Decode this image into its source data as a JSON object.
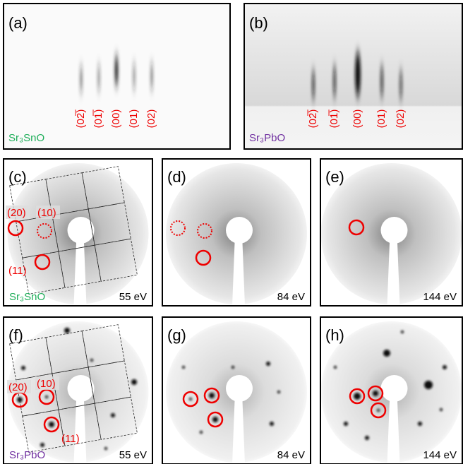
{
  "panels": [
    {
      "label": "(a)",
      "material": "Sr₃SnO",
      "indices": [
        "(02̅)",
        "(01̅)",
        "(00)",
        "(01)",
        "(02)"
      ]
    },
    {
      "label": "(b)",
      "material": "Sr₃PbO",
      "indices": [
        "(02̅)",
        "(01̅)",
        "(00)",
        "(01)",
        "(02)"
      ]
    },
    {
      "label": "(c)",
      "material": "Sr₃SnO",
      "energy": "55 eV",
      "spots": [
        "(20)",
        "(10)",
        "(11)"
      ]
    },
    {
      "label": "(d)",
      "energy": "84 eV"
    },
    {
      "label": "(e)",
      "energy": "144 eV"
    },
    {
      "label": "(f)",
      "material": "Sr₃PbO",
      "energy": "55 eV",
      "spots": [
        "(20)",
        "(10)",
        "(11)"
      ]
    },
    {
      "label": "(g)",
      "energy": "84 eV"
    },
    {
      "label": "(h)",
      "energy": "144 eV"
    }
  ]
}
